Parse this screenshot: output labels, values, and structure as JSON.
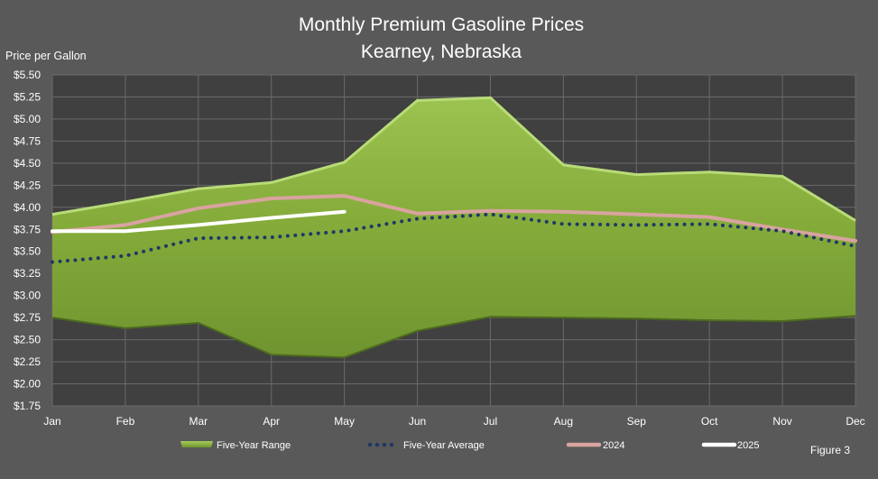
{
  "chart_data": {
    "type": "line",
    "title": [
      "Monthly Premium Gasoline Prices",
      "Kearney, Nebraska"
    ],
    "ylabel": "Price per Gallon",
    "xlabel": "",
    "ylim": [
      1.75,
      5.5
    ],
    "y_ticks": [
      1.75,
      2.0,
      2.25,
      2.5,
      2.75,
      3.0,
      3.25,
      3.5,
      3.75,
      4.0,
      4.25,
      4.5,
      4.75,
      5.0,
      5.25,
      5.5
    ],
    "y_tick_labels": [
      "$1.75",
      "$2.00",
      "$2.25",
      "$2.50",
      "$2.75",
      "$3.00",
      "$3.25",
      "$3.50",
      "$3.75",
      "$4.00",
      "$4.25",
      "$4.50",
      "$4.75",
      "$5.00",
      "$5.25",
      "$5.50"
    ],
    "categories": [
      "Jan",
      "Feb",
      "Mar",
      "Apr",
      "May",
      "Jun",
      "Jul",
      "Aug",
      "Sep",
      "Oct",
      "Nov",
      "Dec"
    ],
    "grid": true,
    "legend_position": "bottom",
    "range": {
      "name": "Five-Year Range",
      "color": "#86AC3C",
      "upper": [
        3.92,
        4.06,
        4.21,
        4.28,
        4.51,
        5.21,
        5.24,
        4.48,
        4.37,
        4.4,
        4.35,
        3.85
      ],
      "lower": [
        2.75,
        2.63,
        2.69,
        2.33,
        2.3,
        2.6,
        2.76,
        2.75,
        2.74,
        2.72,
        2.71,
        2.77
      ]
    },
    "series": [
      {
        "name": "Five-Year Average",
        "style": "dotted",
        "color": "#1F3864",
        "values": [
          3.38,
          3.45,
          3.65,
          3.66,
          3.73,
          3.87,
          3.92,
          3.81,
          3.8,
          3.81,
          3.73,
          3.56
        ]
      },
      {
        "name": "2024",
        "style": "solid",
        "color": "#D9A3A0",
        "values": [
          3.72,
          3.8,
          3.99,
          4.1,
          4.13,
          3.93,
          3.96,
          3.95,
          3.92,
          3.89,
          3.75,
          3.62
        ]
      },
      {
        "name": "2025",
        "style": "solid",
        "color": "#FFFFFF",
        "values": [
          3.73,
          3.73,
          3.8,
          3.88,
          3.95,
          null,
          null,
          null,
          null,
          null,
          null,
          null
        ]
      }
    ],
    "figure_label": "Figure 3"
  }
}
